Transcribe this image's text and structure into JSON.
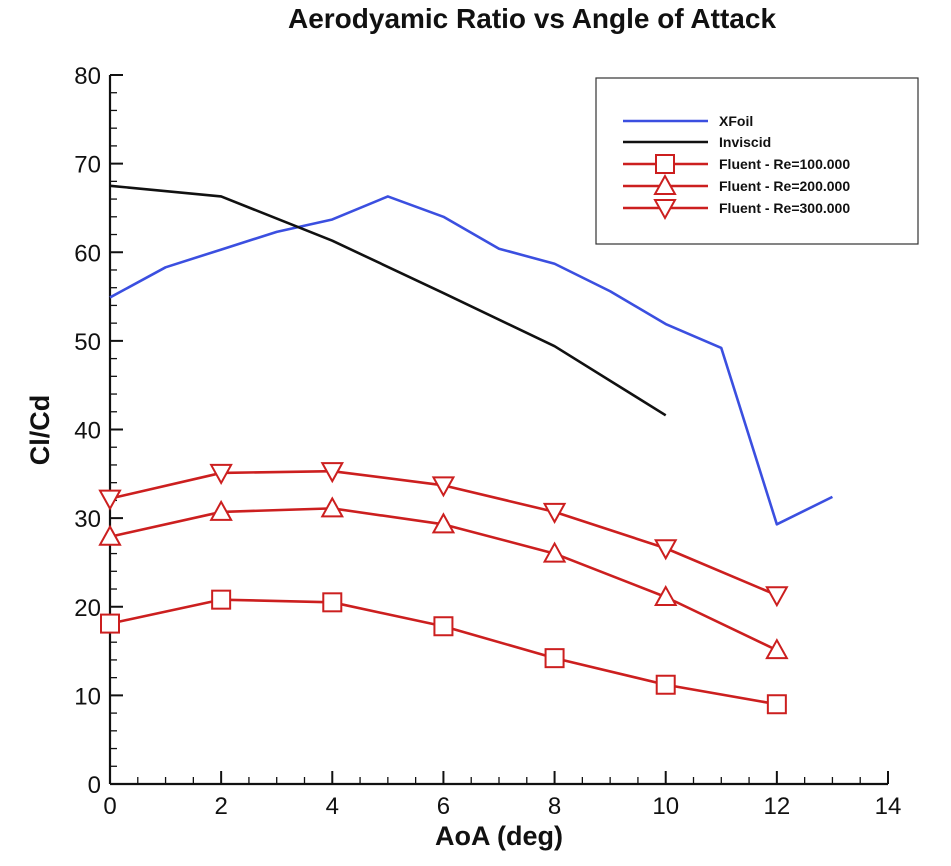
{
  "chart_data": {
    "type": "line",
    "title": "Aerodyamic Ratio vs Angle of Attack",
    "xlabel": "AoA (deg)",
    "ylabel": "Cl/Cd",
    "xlim": [
      0,
      14
    ],
    "ylim": [
      0,
      80
    ],
    "xticks": [
      0,
      2,
      4,
      6,
      8,
      10,
      12,
      14
    ],
    "yticks": [
      0,
      10,
      20,
      30,
      40,
      50,
      60,
      70,
      80
    ],
    "xtick_labels": [
      "0",
      "2",
      "4",
      "6",
      "8",
      "10",
      "12",
      "14"
    ],
    "ytick_labels": [
      "0",
      "10",
      "20",
      "30",
      "40",
      "50",
      "60",
      "70",
      "80"
    ],
    "grid": false,
    "legend_position": "top-right",
    "series": [
      {
        "name": "XFoil",
        "color": "#3b4fe0",
        "marker": "none",
        "x": [
          0,
          1,
          2,
          3,
          4,
          5,
          6,
          7,
          8,
          9,
          10,
          11,
          12,
          13
        ],
        "y": [
          54.9,
          58.3,
          60.3,
          62.3,
          63.7,
          66.3,
          64.0,
          60.4,
          58.7,
          55.6,
          51.9,
          49.2,
          29.3,
          32.4
        ]
      },
      {
        "name": "Inviscid",
        "color": "#111111",
        "marker": "none",
        "x": [
          0,
          2,
          4,
          6,
          8,
          10
        ],
        "y": [
          67.5,
          66.3,
          61.3,
          55.4,
          49.4,
          41.6
        ]
      },
      {
        "name": "Fluent - Re=100.000",
        "color": "#cc1f1f",
        "marker": "square",
        "x": [
          0,
          2,
          4,
          6,
          8,
          10,
          12
        ],
        "y": [
          18.1,
          20.8,
          20.5,
          17.8,
          14.2,
          11.2,
          9.0
        ]
      },
      {
        "name": "Fluent - Re=200.000",
        "color": "#cc1f1f",
        "marker": "triangle-up",
        "x": [
          0,
          2,
          4,
          6,
          8,
          10,
          12
        ],
        "y": [
          27.9,
          30.7,
          31.1,
          29.3,
          26.0,
          21.1,
          15.1
        ]
      },
      {
        "name": "Fluent - Re=300.000",
        "color": "#cc1f1f",
        "marker": "triangle-down",
        "x": [
          0,
          2,
          4,
          6,
          8,
          10,
          12
        ],
        "y": [
          32.2,
          35.1,
          35.3,
          33.7,
          30.7,
          26.6,
          21.3
        ]
      }
    ]
  }
}
